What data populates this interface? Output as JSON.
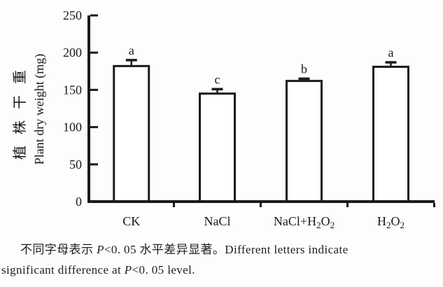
{
  "chart_data": {
    "type": "bar",
    "title": "",
    "ylabel_cn": "植株干重",
    "ylabel_en": "Plant dry weight (mg)",
    "xlabel": "",
    "ylim": [
      0,
      250
    ],
    "yticks": [
      0,
      50,
      100,
      150,
      200,
      250
    ],
    "grid": false,
    "legend": false,
    "bar_fill": "#ffffff",
    "stroke_color": "#1a1a1a",
    "categories": [
      {
        "name": "ck",
        "label": [
          "CK"
        ]
      },
      {
        "name": "nacl",
        "label": [
          "NaCl"
        ]
      },
      {
        "name": "nacl-h2o2",
        "label": [
          "NaCl+H",
          {
            "sub": "2"
          },
          "O",
          {
            "sub": "2"
          }
        ]
      },
      {
        "name": "h2o2",
        "label": [
          "H",
          {
            "sub": "2"
          },
          "O",
          {
            "sub": "2"
          }
        ]
      }
    ],
    "values": [
      182,
      145,
      162,
      181
    ],
    "errors": [
      8,
      6,
      3,
      6
    ],
    "sig_letters": [
      "a",
      "c",
      "b",
      "a"
    ]
  },
  "caption": {
    "line1": [
      {
        "text": "不同字母表示 "
      },
      {
        "text": "P",
        "italic": true
      },
      {
        "text": "<0. 05 水平差异显著。Different letters indicate"
      }
    ],
    "line2": [
      {
        "text": "significant difference at "
      },
      {
        "text": "P",
        "italic": true
      },
      {
        "text": "<0. 05 level."
      }
    ]
  }
}
